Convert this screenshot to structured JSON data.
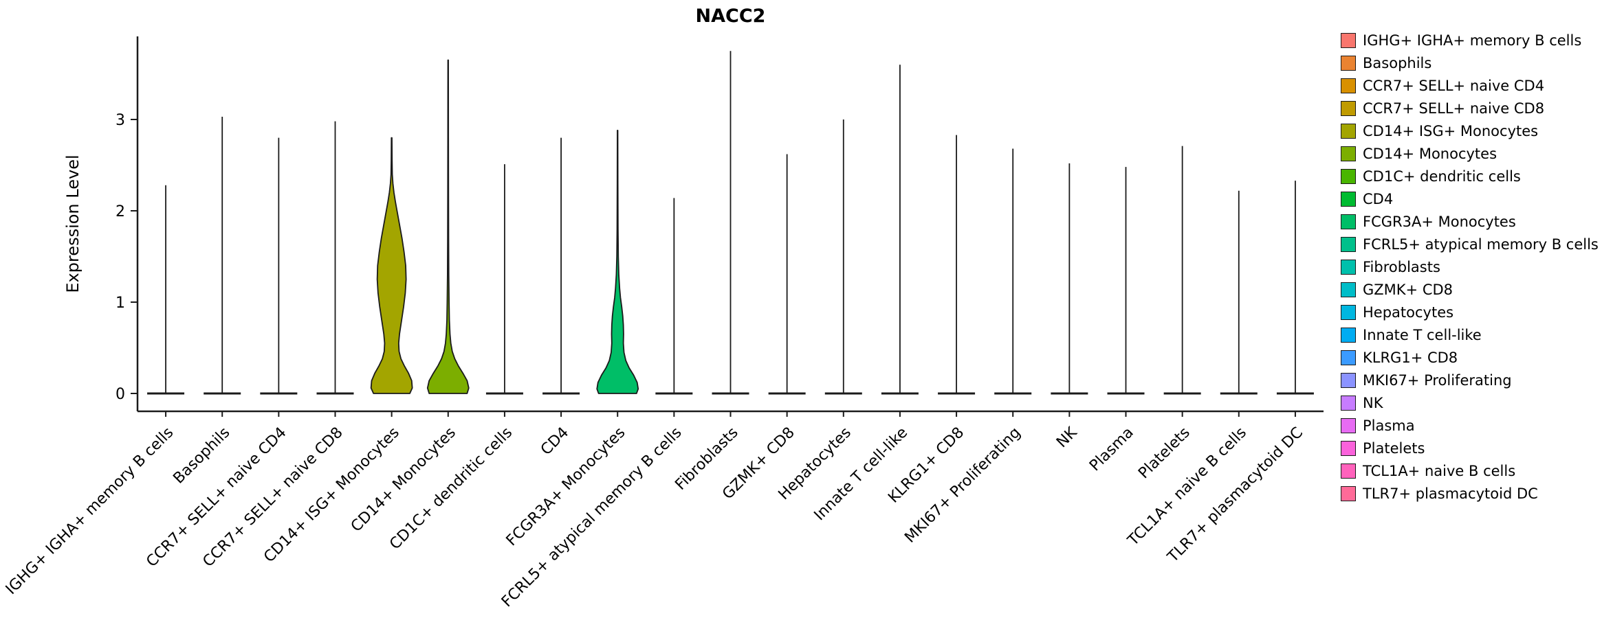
{
  "chart_data": {
    "type": "violin",
    "title": "NACC2",
    "ylabel": "Expression Level",
    "xlabel": "",
    "ylim": [
      0,
      3.91
    ],
    "yticks": [
      0,
      1,
      2,
      3
    ],
    "grid": false,
    "legend_position": "right",
    "outline_color": "#1a1a1a",
    "categories": [
      {
        "label": "IGHG+ IGHA+ memory B cells",
        "color": "#F8766D",
        "max": 2.28
      },
      {
        "label": "Basophils",
        "color": "#EA8331",
        "max": 3.03
      },
      {
        "label": "CCR7+ SELL+ naive CD4",
        "color": "#D89000",
        "max": 2.8
      },
      {
        "label": "CCR7+ SELL+ naive CD8",
        "color": "#C09B00",
        "max": 2.98
      },
      {
        "label": "CD14+ ISG+ Monocytes",
        "color": "#A3A500",
        "max": 2.8,
        "violin": [
          [
            0,
            0.88
          ],
          [
            0.06,
            1.0
          ],
          [
            0.14,
            0.97
          ],
          [
            0.22,
            0.82
          ],
          [
            0.3,
            0.62
          ],
          [
            0.38,
            0.45
          ],
          [
            0.46,
            0.36
          ],
          [
            0.55,
            0.34
          ],
          [
            0.65,
            0.38
          ],
          [
            0.8,
            0.48
          ],
          [
            0.95,
            0.58
          ],
          [
            1.1,
            0.66
          ],
          [
            1.25,
            0.7
          ],
          [
            1.4,
            0.68
          ],
          [
            1.55,
            0.6
          ],
          [
            1.7,
            0.5
          ],
          [
            1.85,
            0.38
          ],
          [
            2.0,
            0.26
          ],
          [
            2.1,
            0.18
          ],
          [
            2.2,
            0.11
          ],
          [
            2.3,
            0.06
          ],
          [
            2.4,
            0.03
          ],
          [
            2.55,
            0.02
          ],
          [
            2.8,
            0.012
          ]
        ]
      },
      {
        "label": "CD14+ Monocytes",
        "color": "#7CAE00",
        "max": 3.65,
        "violin": [
          [
            0,
            0.92
          ],
          [
            0.06,
            1.0
          ],
          [
            0.14,
            0.92
          ],
          [
            0.22,
            0.72
          ],
          [
            0.3,
            0.5
          ],
          [
            0.38,
            0.32
          ],
          [
            0.46,
            0.2
          ],
          [
            0.55,
            0.13
          ],
          [
            0.65,
            0.09
          ],
          [
            0.8,
            0.06
          ],
          [
            1.0,
            0.045
          ],
          [
            1.3,
            0.03
          ],
          [
            1.7,
            0.022
          ],
          [
            2.2,
            0.017
          ],
          [
            2.8,
            0.013
          ],
          [
            3.3,
            0.011
          ],
          [
            3.65,
            0.009
          ]
        ]
      },
      {
        "label": "CD1C+ dendritic cells",
        "color": "#49B500",
        "max": 2.51
      },
      {
        "label": "CD4",
        "color": "#00BB31",
        "max": 2.8
      },
      {
        "label": "FCGR3A+ Monocytes",
        "color": "#00BE67",
        "max": 2.88,
        "violin": [
          [
            0,
            0.92
          ],
          [
            0.05,
            1.0
          ],
          [
            0.12,
            0.95
          ],
          [
            0.2,
            0.78
          ],
          [
            0.28,
            0.56
          ],
          [
            0.36,
            0.4
          ],
          [
            0.45,
            0.31
          ],
          [
            0.55,
            0.28
          ],
          [
            0.65,
            0.29
          ],
          [
            0.75,
            0.28
          ],
          [
            0.85,
            0.25
          ],
          [
            0.95,
            0.2
          ],
          [
            1.05,
            0.14
          ],
          [
            1.15,
            0.1
          ],
          [
            1.3,
            0.06
          ],
          [
            1.5,
            0.035
          ],
          [
            1.8,
            0.022
          ],
          [
            2.3,
            0.014
          ],
          [
            2.88,
            0.009
          ]
        ]
      },
      {
        "label": "FCRL5+ atypical memory B cells",
        "color": "#00C08B",
        "max": 2.14
      },
      {
        "label": "Fibroblasts",
        "color": "#00C0AC",
        "max": 3.75
      },
      {
        "label": "GZMK+ CD8",
        "color": "#00BDC8",
        "max": 2.62
      },
      {
        "label": "Hepatocytes",
        "color": "#00B7E0",
        "max": 3.0
      },
      {
        "label": "Innate T cell-like",
        "color": "#00ACF2",
        "max": 3.6
      },
      {
        "label": "KLRG1+ CD8",
        "color": "#3B9BFF",
        "max": 2.83
      },
      {
        "label": "MKI67+ Proliferating",
        "color": "#8B93FF",
        "max": 2.68
      },
      {
        "label": "NK",
        "color": "#C77CFF",
        "max": 2.52
      },
      {
        "label": "Plasma",
        "color": "#E76BF3",
        "max": 2.48
      },
      {
        "label": "Platelets",
        "color": "#FA62DB",
        "max": 2.71
      },
      {
        "label": "TCL1A+ naive B cells",
        "color": "#FF62BC",
        "max": 2.22
      },
      {
        "label": "TLR7+ plasmacytoid DC",
        "color": "#FF6A98",
        "max": 2.33
      }
    ]
  }
}
